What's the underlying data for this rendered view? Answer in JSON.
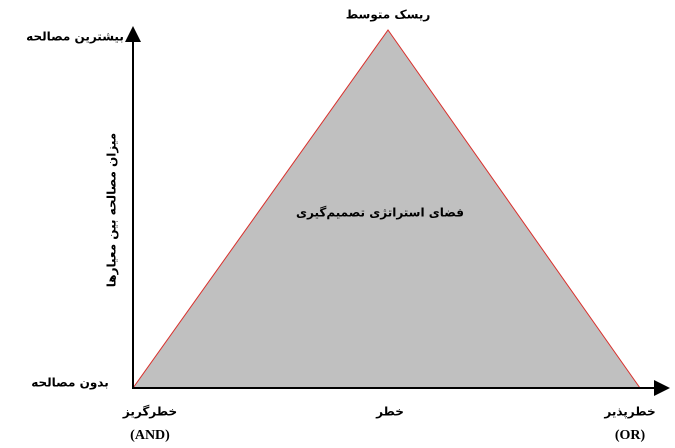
{
  "apex_label": "ریسک متوسط",
  "region_label": "فضای استراتژی تصمیم‌گیری",
  "y_axis": {
    "title": "میزان مصالحه بین معیارها",
    "top_label": "بیشترین مصالحه",
    "bottom_label": "بدون مصالحه"
  },
  "x_labels": [
    {
      "label": "خطرگریز",
      "code": "(AND)"
    },
    {
      "label": "خطر"
    },
    {
      "label": "خطرپذیر",
      "code": "(OR)"
    }
  ]
}
